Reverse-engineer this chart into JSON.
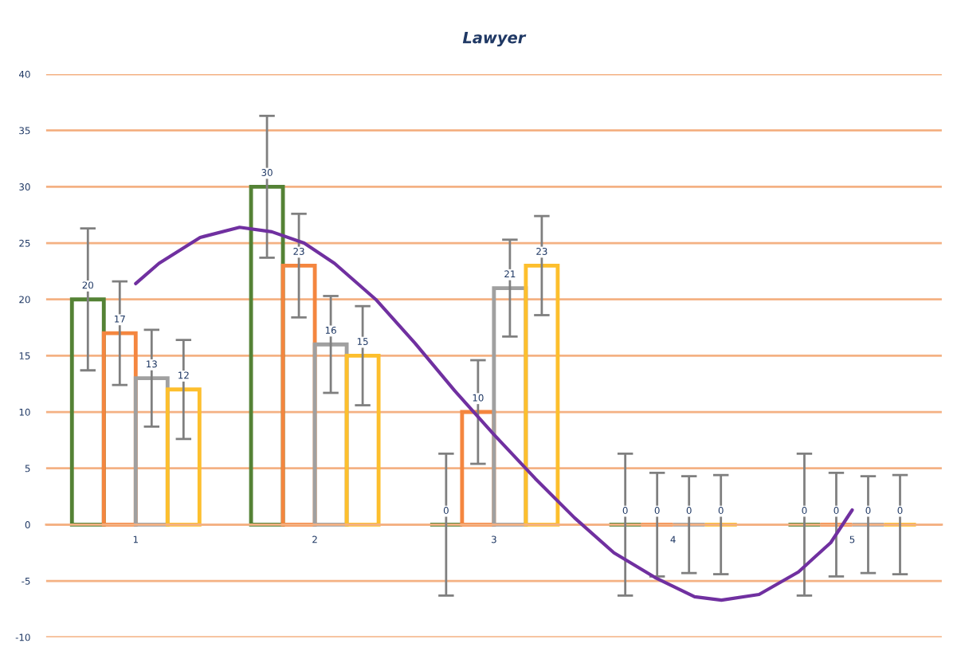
{
  "chart_data": {
    "type": "bar",
    "title": "Lawyer",
    "x": [
      1,
      2,
      3,
      4,
      5
    ],
    "series": [
      {
        "color": "#548235",
        "values": [
          20,
          30,
          0,
          0,
          0
        ],
        "value_labels": [
          "20",
          "30",
          "0",
          "0",
          "0"
        ],
        "errors": [
          6.3,
          6.3,
          6.3,
          6.3,
          6.3
        ]
      },
      {
        "color": "#f4863f",
        "values": [
          17,
          23,
          10,
          0,
          0
        ],
        "value_labels": [
          "17",
          "23",
          "10",
          "0",
          "0"
        ],
        "errors": [
          4.6,
          4.6,
          4.6,
          4.6,
          4.6
        ]
      },
      {
        "color": "#a0a0a0",
        "values": [
          13,
          16,
          21,
          0,
          0
        ],
        "value_labels": [
          "13",
          "16",
          "21",
          "0",
          "0"
        ],
        "errors": [
          4.3,
          4.3,
          4.3,
          4.3,
          4.3
        ]
      },
      {
        "color": "#fdbf2d",
        "values": [
          12,
          15,
          23,
          0,
          0
        ],
        "value_labels": [
          "12",
          "15",
          "23",
          "0",
          "0"
        ],
        "errors": [
          4.4,
          4.4,
          4.4,
          4.4,
          4.4
        ]
      },
      {
        "type": "line",
        "color": "#7030a0",
        "x": [
          1.0,
          1.13,
          1.36,
          1.58,
          1.76,
          1.94,
          2.11,
          2.34,
          2.56,
          2.78,
          3.0,
          3.23,
          3.45,
          3.67,
          3.9,
          4.12,
          4.27,
          4.48,
          4.7,
          4.88,
          5.0
        ],
        "values": [
          21.4,
          23.2,
          25.5,
          26.4,
          26.0,
          25.0,
          23.2,
          20.0,
          16.1,
          11.9,
          8.0,
          4.1,
          0.6,
          -2.5,
          -4.7,
          -6.4,
          -6.7,
          -6.2,
          -4.2,
          -1.6,
          1.3
        ]
      }
    ],
    "xlim": [
      0.5,
      5.5
    ],
    "xticks": [
      1,
      2,
      3,
      4,
      5
    ],
    "ylim": [
      -10,
      40
    ],
    "yticks": [
      -10,
      -5,
      0,
      5,
      10,
      15,
      20,
      25,
      30,
      35,
      40
    ],
    "grid": "y"
  }
}
